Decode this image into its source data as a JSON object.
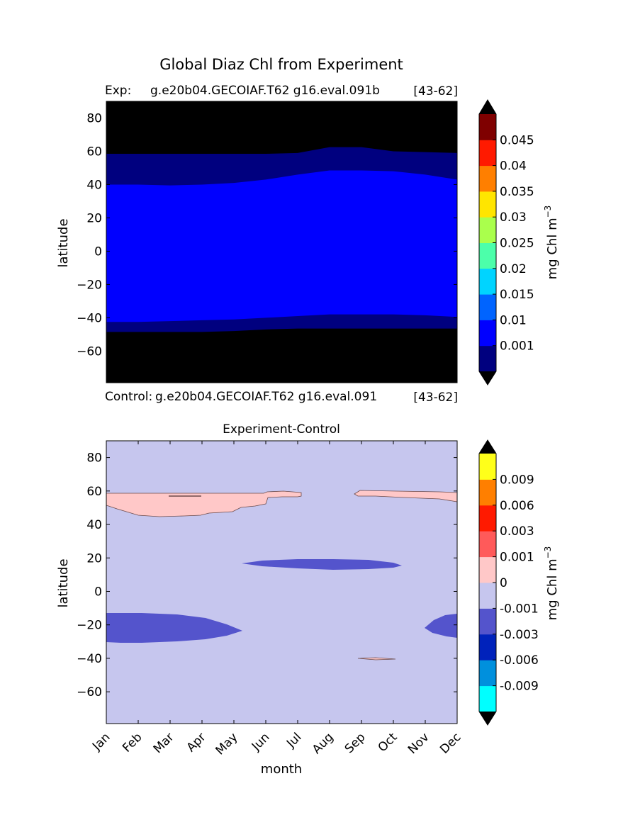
{
  "figure": {
    "suptitle": "Global Diaz Chl from Experiment"
  },
  "chart_data": [
    {
      "type": "contour",
      "label_left": "Exp:",
      "label_center": "g.e20b04.GECOIAF.T62 g16.eval.091b",
      "label_right": "[43-62]",
      "ylabel": "latitude",
      "ylim": [
        -79,
        90
      ],
      "y_ticks": [
        80,
        60,
        40,
        20,
        0,
        -20,
        -40,
        -60
      ],
      "y_tick_labels": [
        "80",
        "60",
        "40",
        "20",
        "0",
        "−20",
        "−40",
        "−60"
      ],
      "x_categories": [
        "Jan",
        "Feb",
        "Mar",
        "Apr",
        "May",
        "Jun",
        "Jul",
        "Aug",
        "Sep",
        "Oct",
        "Nov",
        "Dec"
      ],
      "x_tick_labels_shown": false,
      "colorbar": {
        "label": "mg Chl m",
        "label_superscript": "−3",
        "extend": "both",
        "tick_labels": [
          "0.001",
          "0.01",
          "0.015",
          "0.02",
          "0.025",
          "0.03",
          "0.035",
          "0.04",
          "0.045"
        ],
        "colors": [
          "#00007f",
          "#0000ff",
          "#0064ff",
          "#00d4ff",
          "#4cffaa",
          "#aaff4c",
          "#ffe500",
          "#ff7f00",
          "#ff1a00",
          "#7f0000"
        ],
        "under_color": "#000000",
        "over_color": "#000000"
      },
      "regions": [
        {
          "level": "above 0.001",
          "color": "#0000ff",
          "north_edge": [
            40,
            40,
            39.5,
            40,
            41,
            43,
            46,
            48.5,
            48.5,
            48,
            46,
            43
          ],
          "south_edge": [
            -42.5,
            -42.5,
            -42,
            -41.5,
            -41,
            -40,
            -39,
            -38,
            -38,
            -38,
            -38.5,
            -39.5
          ]
        },
        {
          "level": "0 to 0.001",
          "color": "#00007f",
          "north_edge": [
            58.5,
            58.5,
            58.5,
            58.5,
            58.5,
            58.5,
            59,
            62.5,
            62.5,
            60,
            59.5,
            59
          ],
          "south_edge": [
            -48.5,
            -48.5,
            -48.5,
            -48.5,
            -48,
            -47,
            -46.5,
            -46.5,
            -46.5,
            -46.5,
            -46.5,
            -46.5
          ]
        }
      ]
    },
    {
      "type": "contour",
      "title": "Experiment-Control",
      "header_left": "Control:",
      "header_center": "g.e20b04.GECOIAF.T62 g16.eval.091",
      "header_right": "[43-62]",
      "xlabel": "month",
      "ylabel": "latitude",
      "ylim": [
        -79,
        90
      ],
      "y_ticks": [
        80,
        60,
        40,
        20,
        0,
        -20,
        -40,
        -60
      ],
      "y_tick_labels": [
        "80",
        "60",
        "40",
        "20",
        "0",
        "−20",
        "−40",
        "−60"
      ],
      "x_categories": [
        "Jan",
        "Feb",
        "Mar",
        "Apr",
        "May",
        "Jun",
        "Jul",
        "Aug",
        "Sep",
        "Oct",
        "Nov",
        "Dec"
      ],
      "background_color": "#c6c6ee",
      "colorbar": {
        "label": "mg Chl m",
        "label_superscript": "−3",
        "extend": "both",
        "tick_labels": [
          "-0.009",
          "-0.006",
          "-0.003",
          "-0.001",
          "0",
          "0.001",
          "0.003",
          "0.006",
          "0.009"
        ],
        "colors": [
          "#00ffff",
          "#0090dd",
          "#0022bb",
          "#5454cc",
          "#c6c6ee",
          "#ffc8c8",
          "#ff5a5a",
          "#ff1a00",
          "#ff7f00",
          "#ffff1a"
        ],
        "under_color": "#000000",
        "over_color": "#000000"
      },
      "regions": [
        {
          "level": "0 to 0.001",
          "color": "#ffc8c8",
          "description": "northern band Jan-Jul",
          "lat_range": [
            45,
            60
          ]
        },
        {
          "level": "0 to 0.001",
          "color": "#ffc8c8",
          "description": "northern band Sep-Dec",
          "lat_range": [
            53,
            60
          ]
        },
        {
          "level": "-0.003 to -0.001",
          "color": "#5454cc",
          "description": "equatorial band Jun-Oct",
          "lat_range": [
            13,
            19
          ]
        },
        {
          "level": "-0.003 to -0.001",
          "color": "#5454cc",
          "description": "southern band Jan-May",
          "lat_range": [
            -31,
            -13
          ]
        },
        {
          "level": "-0.003 to -0.001",
          "color": "#5454cc",
          "description": "southern band Nov-Dec",
          "lat_range": [
            -27,
            -13
          ]
        },
        {
          "level": "0 to 0.001",
          "color": "#ffc8c8",
          "description": "small patch near Oct",
          "lat_range": [
            -40,
            -39.5
          ]
        }
      ]
    }
  ]
}
